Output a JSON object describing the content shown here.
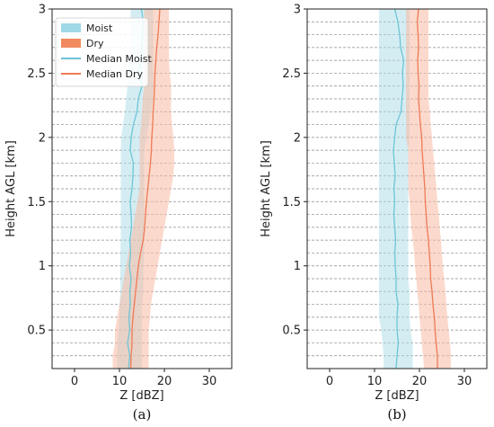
{
  "colors": {
    "moist_fill": "#a9dbe8",
    "dry_fill": "#f7b9a3",
    "moist_line": "#6ec5d6",
    "dry_line": "#ee7b55",
    "grid": "#8a8a8a",
    "axis": "#222222"
  },
  "chart_data": [
    {
      "type": "area",
      "panel_label": "(a)",
      "xlabel": "Z [dBZ]",
      "ylabel": "Height AGL [km]",
      "xlim": [
        -5,
        35
      ],
      "ylim": [
        0.2,
        3.0
      ],
      "xticks": [
        0,
        10,
        20,
        30
      ],
      "yticks": [
        0.5,
        1.0,
        1.5,
        2.0,
        2.5,
        3.0
      ],
      "grid": "horizontal dashed at each height level",
      "legend": {
        "placement": "top-left",
        "entries": [
          "Moist",
          "Dry",
          "Median Moist",
          "Median Dry"
        ]
      },
      "heights": [
        0.2,
        0.3,
        0.4,
        0.5,
        0.6,
        0.7,
        0.8,
        0.9,
        1.0,
        1.1,
        1.2,
        1.3,
        1.4,
        1.5,
        1.6,
        1.7,
        1.8,
        1.9,
        2.0,
        2.1,
        2.2,
        2.3,
        2.4,
        2.5,
        2.6,
        2.7,
        2.8,
        2.9,
        3.0
      ],
      "series": [
        {
          "name": "Moist",
          "kind": "band",
          "low": [
            9.5,
            9.5,
            9.5,
            9.8,
            10.0,
            10.0,
            10.2,
            10.2,
            10.2,
            10.2,
            10.3,
            10.3,
            10.3,
            10.3,
            10.3,
            10.3,
            10.3,
            10.3,
            10.4,
            10.8,
            11.2,
            11.5,
            11.8,
            12.0,
            12.2,
            12.5,
            12.5,
            12.5,
            12.5
          ],
          "high": [
            15.0,
            15.0,
            15.0,
            15.0,
            15.0,
            15.0,
            15.3,
            15.3,
            15.3,
            15.5,
            15.5,
            15.5,
            15.5,
            15.5,
            15.5,
            15.5,
            15.5,
            15.5,
            16.0,
            16.5,
            17.0,
            17.5,
            17.5,
            17.5,
            17.5,
            17.5,
            17.5,
            17.5,
            17.5
          ]
        },
        {
          "name": "Dry",
          "kind": "band",
          "low": [
            8.5,
            8.5,
            9.0,
            9.0,
            9.5,
            10.0,
            10.5,
            11.0,
            11.5,
            12.0,
            12.5,
            13.0,
            13.5,
            14.0,
            14.5,
            14.5,
            14.5,
            14.5,
            14.5,
            14.8,
            15.0,
            15.2,
            15.5,
            15.5,
            15.5,
            15.5,
            15.5,
            15.5,
            15.5
          ],
          "high": [
            16.5,
            16.5,
            16.5,
            16.5,
            16.8,
            17.0,
            17.5,
            18.0,
            18.5,
            19.0,
            19.5,
            20.0,
            20.5,
            21.0,
            21.5,
            22.0,
            22.2,
            22.2,
            22.0,
            21.7,
            21.5,
            21.5,
            21.5,
            21.2,
            21.0,
            21.0,
            21.0,
            21.0,
            21.0
          ]
        },
        {
          "name": "Median Moist",
          "kind": "line",
          "values": [
            12.0,
            12.3,
            11.8,
            12.3,
            12.1,
            12.4,
            12.3,
            12.6,
            12.2,
            12.5,
            12.3,
            12.7,
            12.6,
            12.4,
            12.8,
            13.0,
            13.1,
            12.4,
            12.6,
            13.1,
            13.9,
            14.2,
            15.0,
            14.3,
            14.8,
            15.0,
            15.1,
            15.3,
            14.9
          ]
        },
        {
          "name": "Median Dry",
          "kind": "line",
          "values": [
            12.5,
            12.6,
            12.8,
            12.8,
            13.0,
            13.3,
            13.6,
            13.9,
            14.2,
            14.7,
            15.3,
            15.6,
            15.8,
            16.0,
            16.3,
            16.6,
            16.9,
            17.1,
            17.2,
            17.4,
            17.5,
            17.7,
            17.8,
            17.9,
            18.1,
            18.3,
            18.6,
            18.8,
            19.0
          ]
        }
      ]
    },
    {
      "type": "area",
      "panel_label": "(b)",
      "xlabel": "Z [dBZ]",
      "ylabel": "Height AGL [km]",
      "xlim": [
        -5,
        35
      ],
      "ylim": [
        0.2,
        3.0
      ],
      "xticks": [
        0,
        10,
        20,
        30
      ],
      "yticks": [
        0.5,
        1.0,
        1.5,
        2.0,
        2.5,
        3.0
      ],
      "grid": "horizontal dashed at each height level",
      "legend": null,
      "heights": [
        0.2,
        0.3,
        0.4,
        0.5,
        0.6,
        0.7,
        0.8,
        0.9,
        1.0,
        1.1,
        1.2,
        1.3,
        1.4,
        1.5,
        1.6,
        1.7,
        1.8,
        1.9,
        2.0,
        2.1,
        2.2,
        2.3,
        2.4,
        2.5,
        2.6,
        2.7,
        2.8,
        2.9,
        3.0
      ],
      "series": [
        {
          "name": "Moist",
          "kind": "band",
          "low": [
            12.0,
            12.0,
            11.8,
            11.5,
            11.0,
            11.0,
            11.0,
            11.0,
            11.0,
            11.0,
            11.0,
            11.0,
            11.0,
            11.0,
            11.0,
            11.0,
            11.0,
            11.0,
            11.0,
            11.0,
            11.0,
            11.0,
            11.0,
            11.0,
            11.0,
            11.0,
            11.0,
            11.0,
            11.0
          ],
          "high": [
            18.5,
            18.5,
            18.5,
            18.0,
            17.8,
            17.8,
            17.8,
            17.5,
            17.5,
            17.5,
            17.5,
            17.5,
            17.5,
            17.5,
            17.5,
            17.5,
            17.5,
            17.5,
            17.8,
            17.8,
            17.8,
            17.8,
            17.8,
            17.8,
            17.8,
            17.8,
            17.8,
            17.8,
            17.8
          ]
        },
        {
          "name": "Dry",
          "kind": "band",
          "low": [
            21.0,
            20.8,
            20.5,
            20.3,
            20.0,
            19.8,
            19.5,
            19.3,
            19.0,
            18.8,
            18.5,
            18.2,
            18.0,
            17.8,
            17.5,
            17.5,
            17.5,
            17.5,
            17.0,
            17.0,
            17.0,
            17.0,
            17.0,
            17.0,
            17.0,
            17.0,
            17.0,
            17.0,
            17.0
          ],
          "high": [
            27.0,
            27.0,
            26.8,
            26.5,
            26.2,
            26.0,
            25.8,
            25.5,
            25.2,
            25.0,
            24.8,
            24.5,
            24.3,
            24.0,
            23.8,
            23.5,
            23.3,
            23.0,
            22.8,
            22.5,
            22.3,
            22.0,
            22.0,
            22.0,
            22.0,
            22.0,
            22.0,
            22.0,
            22.0
          ]
        },
        {
          "name": "Median Moist",
          "kind": "line",
          "values": [
            14.8,
            15.0,
            15.3,
            15.0,
            15.0,
            15.2,
            14.8,
            14.8,
            14.6,
            14.5,
            14.7,
            14.5,
            14.3,
            14.5,
            14.3,
            14.6,
            14.4,
            14.2,
            14.5,
            14.8,
            15.9,
            16.1,
            16.4,
            16.2,
            16.5,
            15.8,
            15.6,
            15.2,
            14.5
          ]
        },
        {
          "name": "Median Dry",
          "kind": "line",
          "values": [
            24.0,
            24.0,
            23.7,
            23.5,
            23.3,
            23.0,
            22.8,
            22.5,
            22.4,
            22.2,
            22.0,
            21.7,
            21.5,
            21.3,
            21.2,
            21.0,
            20.8,
            20.6,
            20.5,
            20.2,
            20.0,
            19.8,
            19.9,
            19.7,
            19.6,
            19.8,
            19.7,
            19.5,
            19.8
          ]
        }
      ]
    }
  ]
}
